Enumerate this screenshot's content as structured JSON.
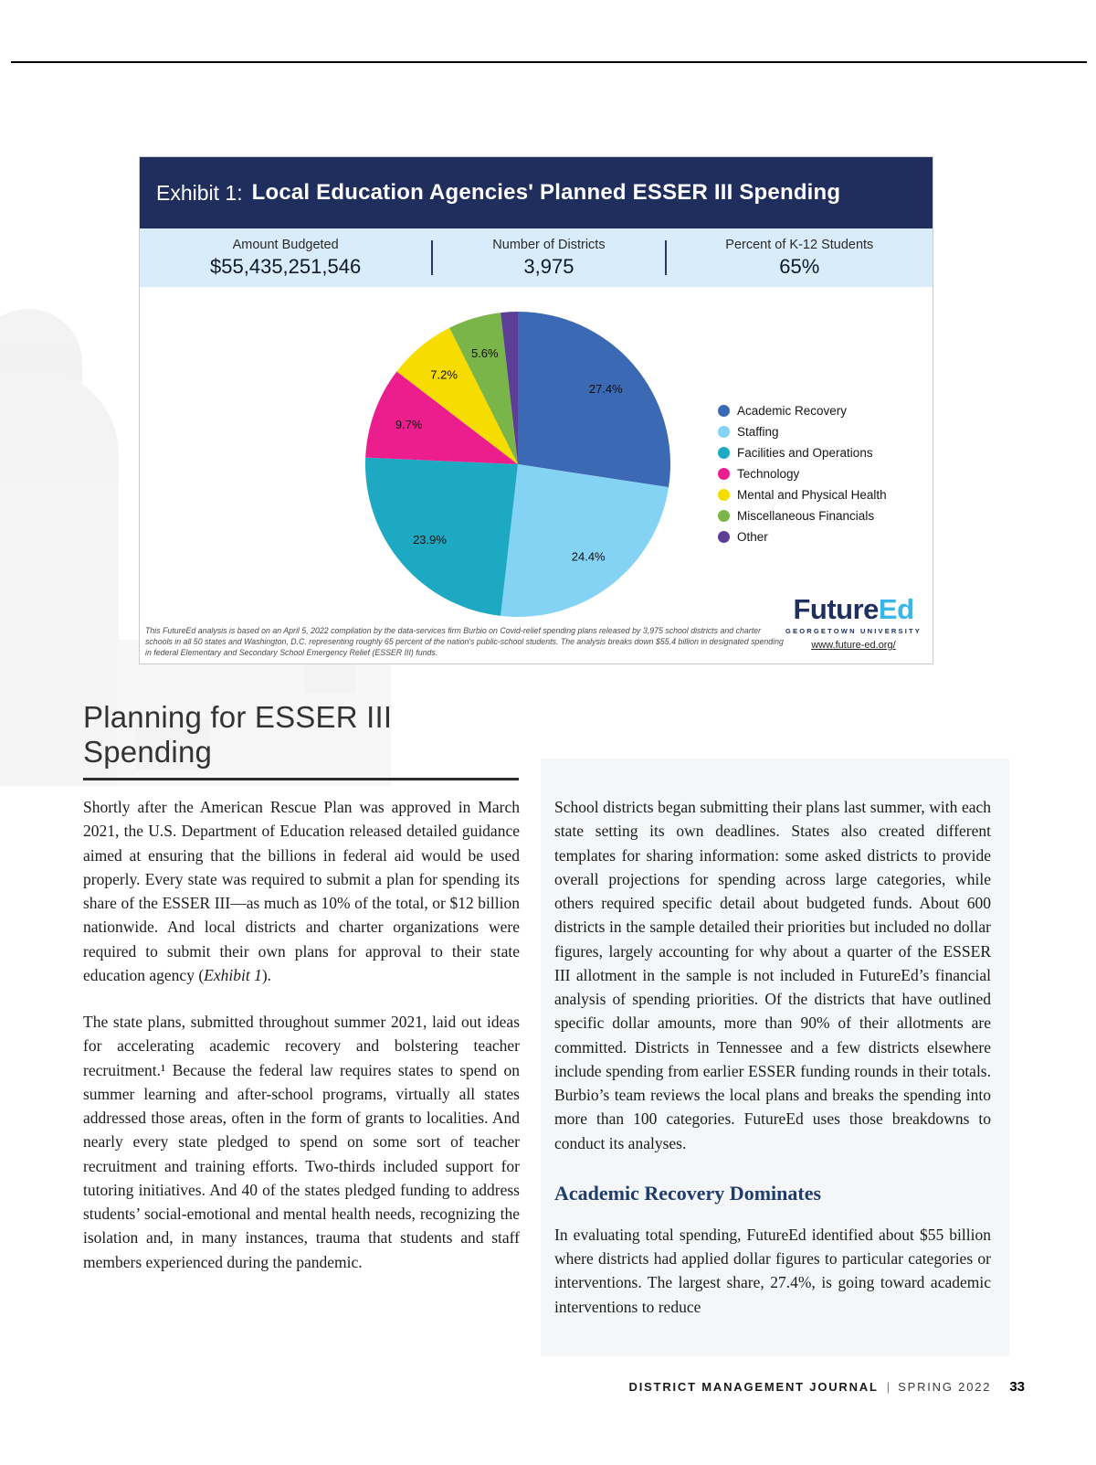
{
  "exhibit": {
    "label": "Exhibit 1:",
    "title": "Local Education Agencies' Planned ESSER III Spending",
    "stats": [
      {
        "label": "Amount Budgeted",
        "value": "$55,435,251,546"
      },
      {
        "label": "Number of Districts",
        "value": "3,975"
      },
      {
        "label": "Percent of K-12 Students",
        "value": "65%"
      }
    ],
    "footnote": "This FutureEd analysis is based on an April 5, 2022 compilation by the data-services firm Burbio on Covid-relief spending plans released by 3,975 school districts and charter schools in all 50 states and Washington, D.C. representing roughly 65 percent of the nation's public-school students. The analysis breaks down $55.4 billion in designated spending in federal Elementary and Secondary School Emergency Relief (ESSER III) funds.",
    "logo": {
      "brand_part1": "Future",
      "brand_part2": "Ed",
      "tagline": "GEORGETOWN UNIVERSITY",
      "url": "www.future-ed.org/"
    }
  },
  "chart_data": {
    "type": "pie",
    "title": "Local Education Agencies' Planned ESSER III Spending",
    "legend_position": "right",
    "start_angle": "top",
    "direction": "clockwise",
    "slices": [
      {
        "label": "Academic Recovery",
        "value": 27.4,
        "display": "27.4%",
        "color": "#3c69b3"
      },
      {
        "label": "Staffing",
        "value": 24.4,
        "display": "24.4%",
        "color": "#85d3f4"
      },
      {
        "label": "Facilities and Operations",
        "value": 23.9,
        "display": "23.9%",
        "color": "#1ea9c2"
      },
      {
        "label": "Technology",
        "value": 9.7,
        "display": "9.7%",
        "color": "#ec1e8d"
      },
      {
        "label": "Mental and Physical Health",
        "value": 7.2,
        "display": "7.2%",
        "color": "#f7dc00"
      },
      {
        "label": "Miscellaneous Financials",
        "value": 5.6,
        "display": "5.6%",
        "color": "#7ab54a"
      },
      {
        "label": "Other",
        "value": 1.8,
        "display": "",
        "color": "#5d3e97"
      }
    ]
  },
  "article": {
    "heading": "Planning for ESSER III Spending",
    "left": {
      "p1_before": "Shortly after the American Rescue Plan was approved in March 2021, the U.S. Department of Education released detailed guidance aimed at ensuring that the billions in federal aid would be used properly. Every state was required to submit a plan for spending its share of the ESSER III—as much as 10% of the total, or $12 billion nationwide. And local districts and charter organizations were required to submit their own plans for approval to their state education agency (",
      "p1_italic": "Exhibit 1",
      "p1_after": ").",
      "p2": "The state plans, submitted throughout summer 2021, laid out ideas for accelerating academic recovery and bolstering teacher recruitment.¹ Because the federal law requires states to spend on summer learning and after-school programs, virtually all states addressed those areas, often in the form of grants to localities. And nearly every state pledged to spend on some sort of teacher recruitment and training efforts. Two-thirds included support for tutoring initiatives. And 40 of the states pledged funding to address students’ social-emotional and mental health needs, recognizing the isolation and, in many instances, trauma that students and staff members experienced during the pandemic."
    },
    "right": {
      "p1": "School districts began submitting their plans last summer, with each state setting its own deadlines. States also created different templates for sharing information: some asked districts to provide overall projections for spending across large categories, while others required specific detail about budgeted funds. About 600 districts in the sample detailed their priorities but included no dollar figures, largely accounting for why about a quarter of the ESSER III allotment in the sample is not included in FutureEd’s financial analysis of spending priorities. Of the districts that have outlined specific dollar amounts, more than 90% of their allotments are committed. Districts in Tennessee and a few districts elsewhere include spending from earlier ESSER funding rounds in their totals. Burbio’s team reviews the local plans and breaks the spending into more than 100 categories. FutureEd uses those breakdowns to conduct its analyses.",
      "subhead": "Academic Recovery Dominates",
      "p2": "In evaluating total spending, FutureEd identified about $55 billion where districts had applied dollar figures to particular categories or interventions. The largest share, 27.4%, is going toward academic interventions to reduce"
    }
  },
  "footer": {
    "journal": "DISTRICT MANAGEMENT JOURNAL",
    "separator": "|",
    "issue": "SPRING 2022",
    "page_number": "33"
  }
}
